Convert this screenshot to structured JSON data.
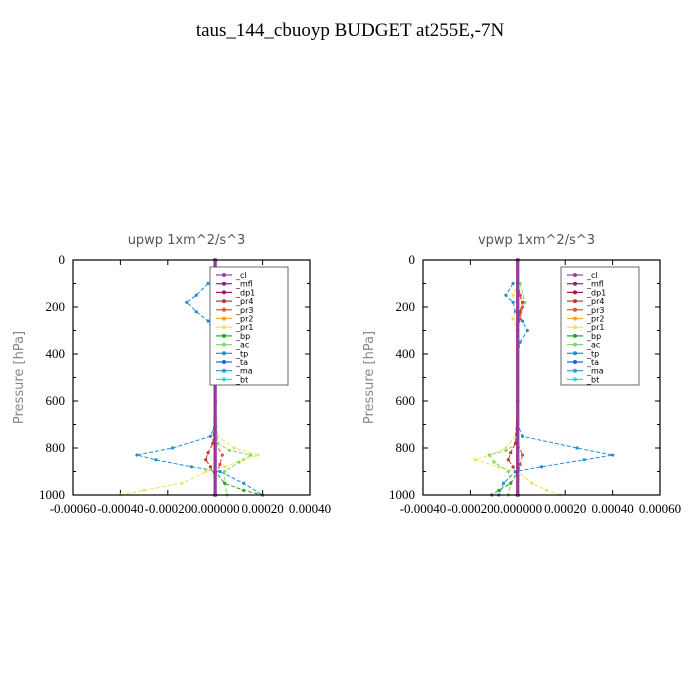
{
  "title": "taus_144_cbuoyp  BUDGET at255E,-7N",
  "legend_items": [
    {
      "label": "_cl",
      "color": "#8e44ad"
    },
    {
      "label": "_mfl",
      "color": "#9b1a6e"
    },
    {
      "label": "_dp1",
      "color": "#a0145a"
    },
    {
      "label": "_pr4",
      "color": "#c0392b"
    },
    {
      "label": "_pr3",
      "color": "#e74c3c"
    },
    {
      "label": "_pr2",
      "color": "#f5a623"
    },
    {
      "label": "_pr1",
      "color": "#f1e05a"
    },
    {
      "label": "_bp",
      "color": "#2ca02c"
    },
    {
      "label": "_ac",
      "color": "#7fd86e"
    },
    {
      "label": "_tp",
      "color": "#1f8fd8"
    },
    {
      "label": "_ta",
      "color": "#1f5fd8"
    },
    {
      "label": "_ma",
      "color": "#3a9ad9"
    },
    {
      "label": "_bt",
      "color": "#36d6e7"
    }
  ],
  "chart_data": [
    {
      "type": "line",
      "title": "upwp   1xm^2/s^3",
      "ylabel": "Pressure [hPa]",
      "xlim": [
        -0.0006,
        0.0004
      ],
      "ylim": [
        1000,
        0
      ],
      "x_ticks": [
        "-0.00060",
        "-0.00040",
        "-0.00020",
        "0.000000",
        "0.00020",
        "0.00040"
      ],
      "y_ticks": [
        "0",
        "200",
        "400",
        "600",
        "800",
        "1000"
      ],
      "series": [
        {
          "name": "_tp",
          "color": "#1f8fd8",
          "y": [
            100,
            150,
            180,
            220,
            260,
            300,
            350,
            400,
            500,
            600,
            700,
            750,
            800,
            830,
            850,
            880,
            900,
            950,
            1000
          ],
          "x": [
            -3e-05,
            -8e-05,
            -0.00012,
            -8e-05,
            -3e-05,
            -1e-05,
            0,
            0,
            0,
            0,
            0,
            -2e-05,
            -0.00018,
            -0.00033,
            -0.00025,
            -0.0001,
            2e-05,
            0.00012,
            0.0002
          ]
        },
        {
          "name": "_pr1",
          "color": "#f1e05a",
          "y": [
            100,
            150,
            180,
            220,
            260,
            300,
            400,
            600,
            750,
            800,
            830,
            850,
            880,
            900,
            950,
            980,
            1000
          ],
          "x": [
            0,
            2e-05,
            4e-05,
            2e-05,
            1e-05,
            0,
            0,
            0,
            1e-05,
            8e-05,
            0.00018,
            0.00012,
            4e-05,
            -4e-05,
            -0.00014,
            -0.0003,
            -0.0004
          ]
        },
        {
          "name": "_ac",
          "color": "#7fd86e",
          "y": [
            100,
            180,
            220,
            300,
            600,
            780,
            810,
            830,
            860,
            900,
            950,
            1000
          ],
          "x": [
            -2e-05,
            2e-05,
            1e-05,
            0,
            0,
            1e-05,
            6e-05,
            0.00015,
            0.0001,
            4e-05,
            4e-05,
            5e-05
          ]
        },
        {
          "name": "_bp",
          "color": "#2ca02c",
          "y": [
            100,
            300,
            600,
            800,
            850,
            900,
            950,
            980,
            1000
          ],
          "x": [
            0,
            0,
            0,
            0,
            0,
            0,
            4e-05,
            0.00012,
            0.0002
          ]
        },
        {
          "name": "_pr4",
          "color": "#c0392b",
          "y": [
            100,
            150,
            180,
            220,
            300,
            600,
            780,
            820,
            850,
            880,
            920,
            1000
          ],
          "x": [
            0,
            1e-05,
            2e-05,
            1e-05,
            0,
            0,
            -1e-05,
            -3e-05,
            -4e-05,
            -2e-05,
            0,
            0
          ]
        },
        {
          "name": "_pr3",
          "color": "#e74c3c",
          "y": [
            100,
            150,
            200,
            250,
            300,
            600,
            780,
            830,
            870,
            920,
            1000
          ],
          "x": [
            0,
            2e-05,
            3e-05,
            1e-05,
            0,
            0,
            0,
            3e-05,
            2e-05,
            0,
            0
          ]
        },
        {
          "name": "_dp1",
          "color": "#a0145a",
          "y": [
            0,
            1000
          ],
          "x": [
            0,
            0
          ]
        },
        {
          "name": "_mfl",
          "color": "#9b1a6e",
          "y": [
            0,
            1000
          ],
          "x": [
            -2e-06,
            -2e-06
          ]
        },
        {
          "name": "_cl",
          "color": "#8e44ad",
          "y": [
            0,
            1000
          ],
          "x": [
            2e-06,
            2e-06
          ]
        }
      ]
    },
    {
      "type": "line",
      "title": "vpwp   1xm^2/s^3",
      "ylabel": "Pressure [hPa]",
      "xlim": [
        -0.0004,
        0.0006
      ],
      "ylim": [
        1000,
        0
      ],
      "x_ticks": [
        "-0.00040",
        "-0.00020",
        "0.000000",
        "0.00020",
        "0.00040",
        "0.00060"
      ],
      "y_ticks": [
        "0",
        "200",
        "400",
        "600",
        "800",
        "1000"
      ],
      "series": [
        {
          "name": "_tp",
          "color": "#1f8fd8",
          "y": [
            100,
            150,
            180,
            220,
            260,
            300,
            350,
            400,
            500,
            600,
            700,
            750,
            800,
            830,
            850,
            880,
            900,
            950,
            1000
          ],
          "x": [
            -2e-05,
            -5e-05,
            -2e-05,
            -1e-05,
            2e-05,
            4e-05,
            1e-05,
            0,
            0,
            0,
            0,
            2e-05,
            0.00025,
            0.0004,
            0.00028,
            0.0001,
            -1e-05,
            -6e-05,
            -8e-05
          ]
        },
        {
          "name": "_pr1",
          "color": "#f1e05a",
          "y": [
            100,
            150,
            200,
            250,
            300,
            400,
            600,
            750,
            800,
            830,
            850,
            880,
            900,
            950,
            980,
            1000
          ],
          "x": [
            0,
            -2e-05,
            0,
            -2e-05,
            0,
            0,
            0,
            -1e-05,
            -5e-05,
            -0.00012,
            -0.00018,
            -8e-05,
            0,
            6e-05,
            0.00012,
            0.00018
          ]
        },
        {
          "name": "_ac",
          "color": "#7fd86e",
          "y": [
            100,
            180,
            220,
            300,
            600,
            780,
            810,
            830,
            860,
            900,
            950,
            1000
          ],
          "x": [
            1e-05,
            3e-05,
            1e-05,
            0,
            0,
            0,
            -5e-05,
            -0.00012,
            -0.0001,
            -4e-05,
            -3e-05,
            -4e-05
          ]
        },
        {
          "name": "_bp",
          "color": "#2ca02c",
          "y": [
            100,
            300,
            600,
            800,
            850,
            900,
            950,
            980,
            1000
          ],
          "x": [
            0,
            0,
            0,
            0,
            0,
            0,
            -3e-05,
            -8e-05,
            -0.00011
          ]
        },
        {
          "name": "_pr4",
          "color": "#c0392b",
          "y": [
            100,
            150,
            180,
            220,
            300,
            600,
            780,
            820,
            850,
            880,
            920,
            1000
          ],
          "x": [
            0,
            1e-05,
            2e-05,
            1e-05,
            0,
            0,
            -1e-05,
            -3e-05,
            -4e-05,
            -2e-05,
            0,
            0
          ]
        },
        {
          "name": "_pr3",
          "color": "#e74c3c",
          "y": [
            100,
            150,
            200,
            250,
            300,
            600,
            780,
            830,
            870,
            920,
            1000
          ],
          "x": [
            0,
            1e-05,
            2e-05,
            1e-05,
            0,
            0,
            0,
            2e-05,
            1e-05,
            0,
            0
          ]
        },
        {
          "name": "_dp1",
          "color": "#a0145a",
          "y": [
            0,
            1000
          ],
          "x": [
            0,
            0
          ]
        },
        {
          "name": "_mfl",
          "color": "#9b1a6e",
          "y": [
            0,
            1000
          ],
          "x": [
            -2e-06,
            -2e-06
          ]
        },
        {
          "name": "_cl",
          "color": "#8e44ad",
          "y": [
            0,
            1000
          ],
          "x": [
            2e-06,
            2e-06
          ]
        }
      ]
    }
  ]
}
